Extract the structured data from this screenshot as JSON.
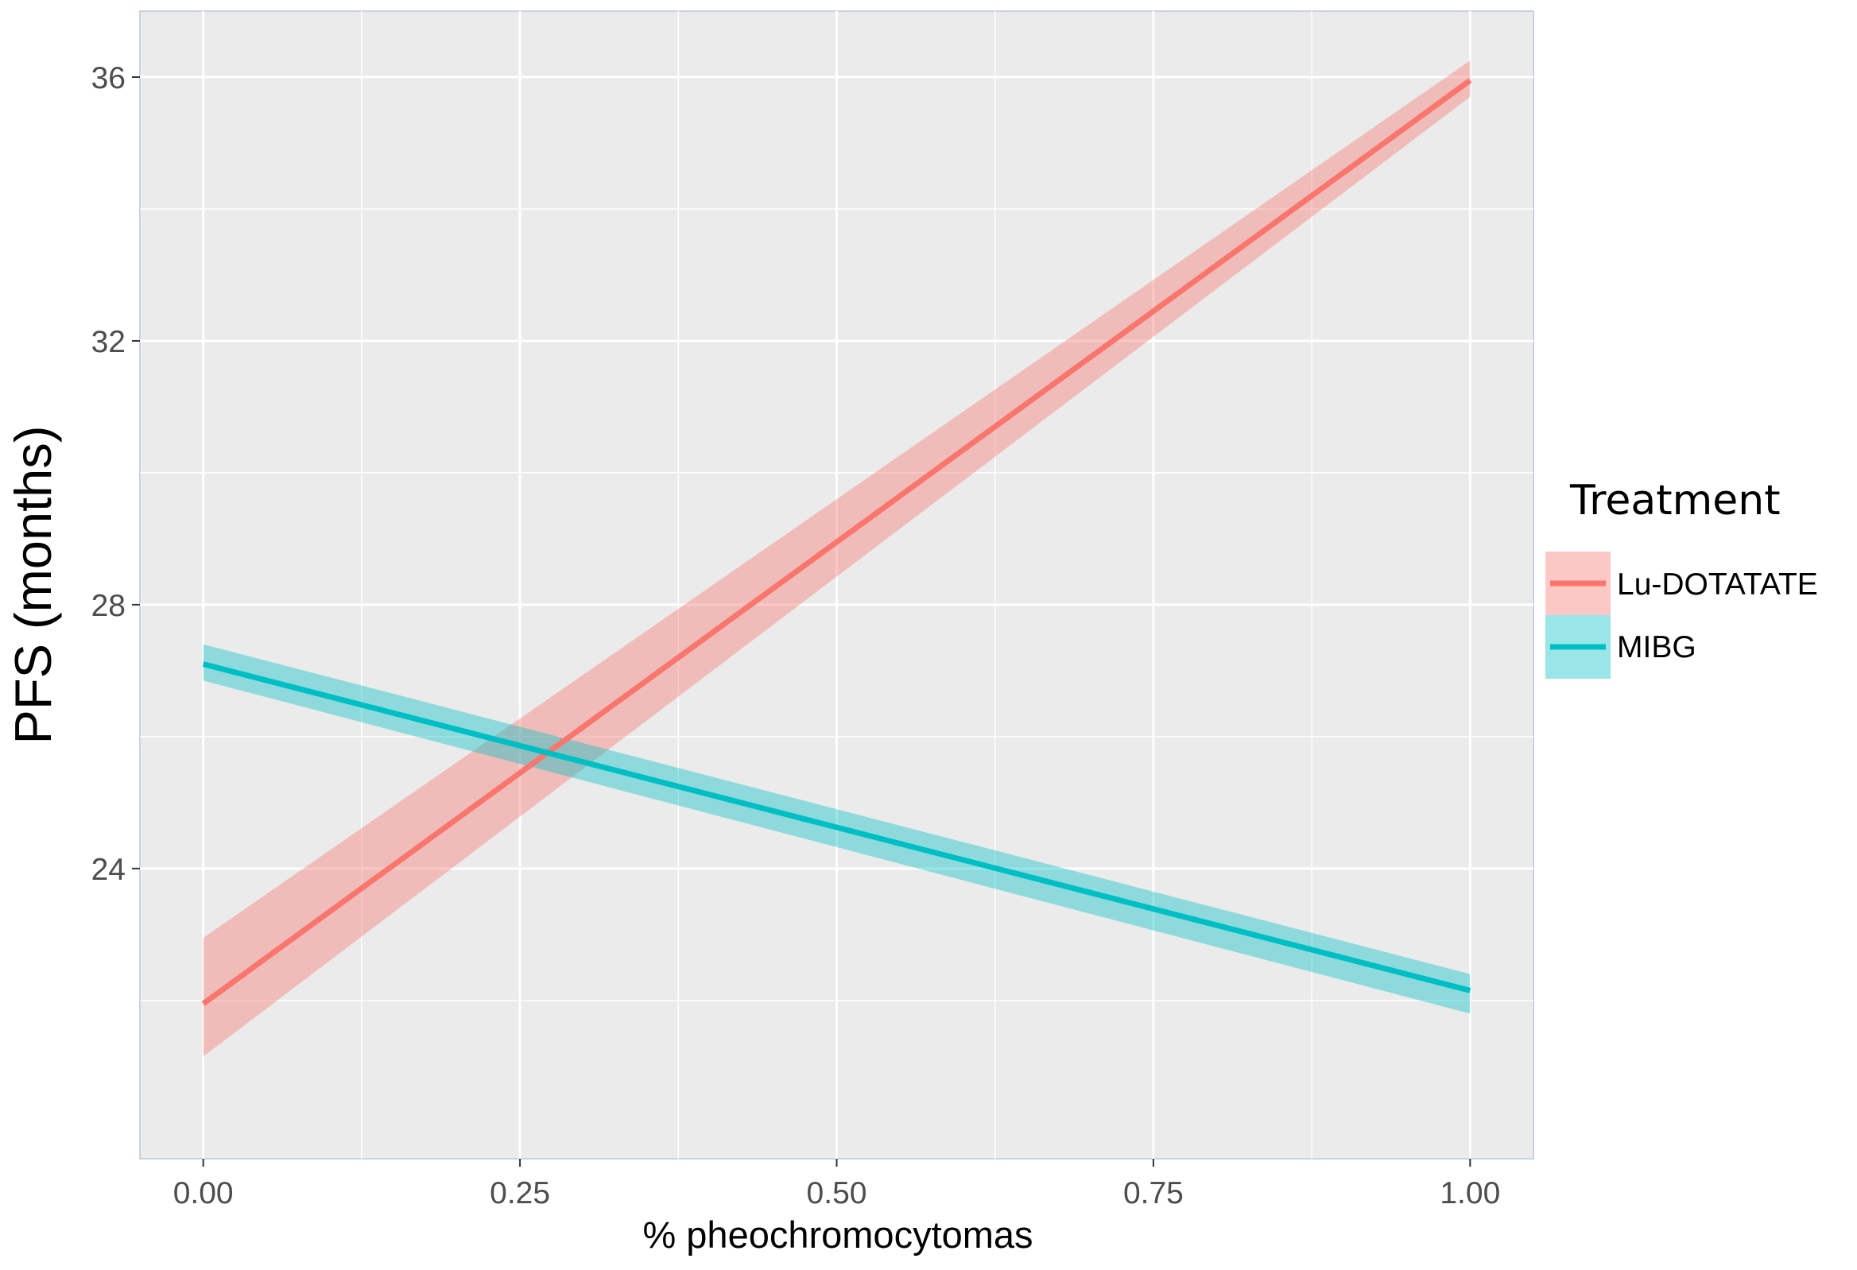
{
  "chart_data": {
    "type": "line",
    "xlabel": "% pheochromocytomas",
    "ylabel": "PFS (months)",
    "xlim": [
      -0.05,
      1.05
    ],
    "ylim": [
      19.6,
      37.0
    ],
    "xticks": [
      0.0,
      0.25,
      0.5,
      0.75,
      1.0
    ],
    "xtick_labels": [
      "0.00",
      "0.25",
      "0.50",
      "0.75",
      "1.00"
    ],
    "yticks": [
      24,
      28,
      32,
      36
    ],
    "ytick_labels": [
      "24",
      "28",
      "32",
      "36"
    ],
    "grid": true,
    "legend": {
      "title": "Treatment",
      "position": "right"
    },
    "series": [
      {
        "name": "Lu-DOTATATE",
        "color": "#F8766D",
        "x": [
          0.0,
          1.0
        ],
        "y": [
          21.95,
          35.95
        ],
        "ci_lower": [
          21.15,
          35.7
        ],
        "ci_upper": [
          22.95,
          36.25
        ]
      },
      {
        "name": "MIBG",
        "color": "#00BFC4",
        "x": [
          0.0,
          1.0
        ],
        "y": [
          27.1,
          22.15
        ],
        "ci_lower": [
          26.85,
          21.8
        ],
        "ci_upper": [
          27.4,
          22.4
        ]
      }
    ]
  }
}
